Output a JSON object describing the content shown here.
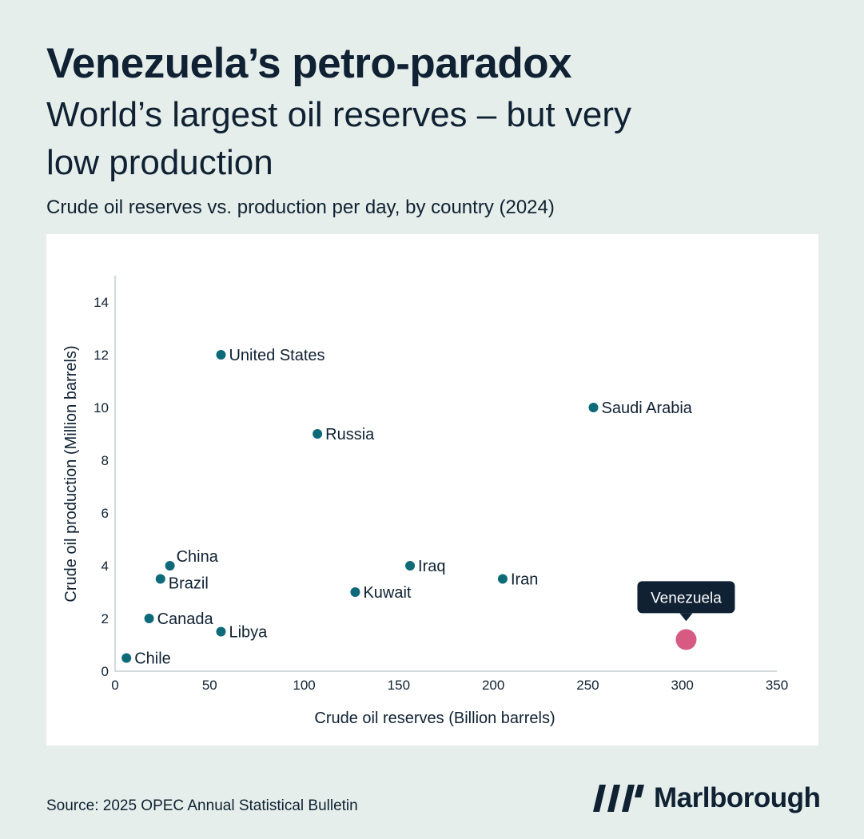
{
  "header": {
    "title": "Venezuela’s petro-paradox",
    "subtitle": "World’s largest oil reserves – but very low production",
    "description": "Crude oil reserves vs. production per day, by country (2024)"
  },
  "footer": {
    "source": "Source: 2025 OPEC Annual Statistical Bulletin",
    "brand_name": "Marlborough"
  },
  "colors": {
    "background": "#e5eeea",
    "point": "#0d6a78",
    "highlight_point": "#d65a82",
    "callout": "#0f2133",
    "text": "#0f2133"
  },
  "chart_data": {
    "type": "scatter",
    "xlabel": "Crude oil reserves (Billion barrels)",
    "ylabel": "Crude oil production (Million barrels)",
    "xlim": [
      0,
      350
    ],
    "ylim": [
      0,
      15
    ],
    "xticks": [
      0,
      50,
      100,
      150,
      200,
      250,
      300,
      350
    ],
    "yticks": [
      0,
      2,
      4,
      6,
      8,
      10,
      12,
      14
    ],
    "grid": false,
    "points": [
      {
        "label": "United States",
        "x": 56,
        "y": 12,
        "highlight": false,
        "label_pos": "right"
      },
      {
        "label": "Saudi Arabia",
        "x": 253,
        "y": 10,
        "highlight": false,
        "label_pos": "right"
      },
      {
        "label": "Russia",
        "x": 107,
        "y": 9,
        "highlight": false,
        "label_pos": "right"
      },
      {
        "label": "China",
        "x": 29,
        "y": 4,
        "highlight": false,
        "label_pos": "upper-right"
      },
      {
        "label": "Brazil",
        "x": 24,
        "y": 3.5,
        "highlight": false,
        "label_pos": "lower-right"
      },
      {
        "label": "Iraq",
        "x": 156,
        "y": 4,
        "highlight": false,
        "label_pos": "right"
      },
      {
        "label": "Iran",
        "x": 205,
        "y": 3.5,
        "highlight": false,
        "label_pos": "right"
      },
      {
        "label": "Kuwait",
        "x": 127,
        "y": 3,
        "highlight": false,
        "label_pos": "right"
      },
      {
        "label": "Canada",
        "x": 18,
        "y": 2,
        "highlight": false,
        "label_pos": "right"
      },
      {
        "label": "Libya",
        "x": 56,
        "y": 1.5,
        "highlight": false,
        "label_pos": "right"
      },
      {
        "label": "Chile",
        "x": 6,
        "y": 0.5,
        "highlight": false,
        "label_pos": "right"
      },
      {
        "label": "Venezuela",
        "x": 302,
        "y": 1.2,
        "highlight": true,
        "label_pos": "callout-above"
      }
    ]
  }
}
